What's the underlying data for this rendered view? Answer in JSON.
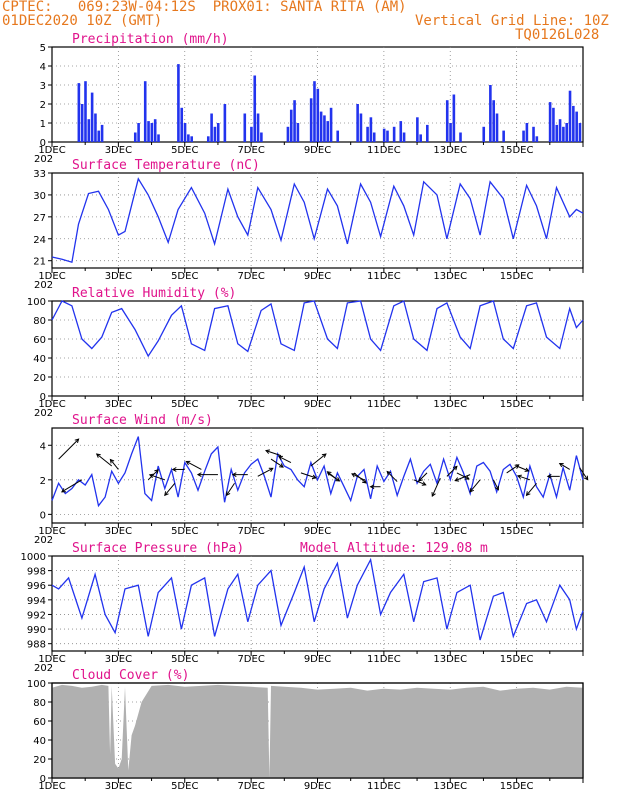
{
  "header": {
    "line1_left": "CPTEC:   069:23W-04:12S  PROX01: SANTA RITA (AM)",
    "line2_left": "01DEC2020 10Z (GMT)",
    "line2_right": "Vertical Grid Line: 10Z",
    "line3_right": "TQ0126L028"
  },
  "colors": {
    "header": "#e6781e",
    "title": "#e0138c",
    "series": "#2233ee",
    "cloud": "#b0b0b0"
  },
  "x_tick_labels": [
    "1DEC",
    "3DEC",
    "5DEC",
    "7DEC",
    "9DEC",
    "11DEC",
    "13DEC",
    "15DEC"
  ],
  "year_fragment": "202",
  "chart_data": [
    {
      "type": "bar",
      "title": "Precipitation (mm/h)",
      "ylim": [
        0,
        5
      ],
      "yticks": [
        0,
        1,
        2,
        3,
        4,
        5
      ],
      "grid": true,
      "x_unit": "days since 01DEC2020 10Z",
      "bars": [
        [
          0.8,
          3.1
        ],
        [
          0.9,
          2.0
        ],
        [
          1.0,
          3.2
        ],
        [
          1.1,
          1.2
        ],
        [
          1.2,
          2.6
        ],
        [
          1.3,
          1.5
        ],
        [
          1.4,
          0.6
        ],
        [
          1.5,
          0.9
        ],
        [
          2.5,
          0.5
        ],
        [
          2.6,
          1.0
        ],
        [
          2.8,
          3.2
        ],
        [
          2.9,
          1.1
        ],
        [
          3.0,
          1.0
        ],
        [
          3.1,
          1.2
        ],
        [
          3.2,
          0.4
        ],
        [
          3.8,
          4.1
        ],
        [
          3.9,
          1.8
        ],
        [
          4.0,
          1.0
        ],
        [
          4.1,
          0.4
        ],
        [
          4.2,
          0.3
        ],
        [
          4.7,
          0.3
        ],
        [
          4.8,
          1.5
        ],
        [
          4.9,
          0.8
        ],
        [
          5.0,
          1.0
        ],
        [
          5.2,
          2.0
        ],
        [
          5.8,
          1.5
        ],
        [
          6.0,
          0.8
        ],
        [
          6.1,
          3.5
        ],
        [
          6.2,
          1.5
        ],
        [
          6.3,
          0.5
        ],
        [
          7.1,
          0.8
        ],
        [
          7.2,
          1.7
        ],
        [
          7.3,
          2.2
        ],
        [
          7.4,
          1.0
        ],
        [
          7.8,
          2.3
        ],
        [
          7.9,
          3.2
        ],
        [
          8.0,
          2.8
        ],
        [
          8.1,
          1.6
        ],
        [
          8.2,
          1.4
        ],
        [
          8.3,
          1.1
        ],
        [
          8.4,
          1.8
        ],
        [
          8.6,
          0.6
        ],
        [
          9.2,
          2.0
        ],
        [
          9.3,
          1.5
        ],
        [
          9.5,
          0.8
        ],
        [
          9.6,
          1.3
        ],
        [
          9.7,
          0.5
        ],
        [
          10.0,
          0.7
        ],
        [
          10.1,
          0.6
        ],
        [
          10.3,
          0.8
        ],
        [
          10.5,
          1.1
        ],
        [
          10.6,
          0.5
        ],
        [
          11.0,
          1.3
        ],
        [
          11.1,
          0.4
        ],
        [
          11.3,
          0.9
        ],
        [
          11.9,
          2.2
        ],
        [
          12.0,
          1.0
        ],
        [
          12.1,
          2.5
        ],
        [
          12.3,
          0.5
        ],
        [
          13.0,
          0.8
        ],
        [
          13.2,
          3.0
        ],
        [
          13.3,
          2.2
        ],
        [
          13.4,
          1.5
        ],
        [
          13.6,
          0.6
        ],
        [
          14.2,
          0.6
        ],
        [
          14.3,
          1.0
        ],
        [
          14.5,
          0.8
        ],
        [
          14.6,
          0.3
        ],
        [
          15.0,
          2.1
        ],
        [
          15.1,
          1.8
        ],
        [
          15.2,
          0.9
        ],
        [
          15.3,
          1.2
        ],
        [
          15.4,
          0.8
        ],
        [
          15.5,
          1.0
        ],
        [
          15.6,
          2.7
        ],
        [
          15.7,
          1.9
        ],
        [
          15.8,
          1.6
        ],
        [
          15.9,
          1.0
        ]
      ]
    },
    {
      "type": "line",
      "title": "Surface Temperature (nC)",
      "ylim": [
        20,
        33
      ],
      "yticks": [
        21,
        24,
        27,
        30,
        33
      ],
      "grid": true,
      "x": [
        0.0,
        0.3,
        0.6,
        0.8,
        1.1,
        1.4,
        1.7,
        2.0,
        2.2,
        2.6,
        2.9,
        3.2,
        3.5,
        3.8,
        4.2,
        4.6,
        4.9,
        5.3,
        5.6,
        5.9,
        6.2,
        6.6,
        6.9,
        7.3,
        7.6,
        7.9,
        8.3,
        8.6,
        8.9,
        9.3,
        9.6,
        9.9,
        10.3,
        10.6,
        10.9,
        11.2,
        11.6,
        11.9,
        12.3,
        12.6,
        12.9,
        13.2,
        13.6,
        13.9,
        14.3,
        14.6,
        14.9,
        15.2,
        15.6,
        15.8,
        16.0
      ],
      "y": [
        21.5,
        21.2,
        20.8,
        26.0,
        30.2,
        30.5,
        28.0,
        24.5,
        25.0,
        32.2,
        30.0,
        27.0,
        23.5,
        28.0,
        31.0,
        27.5,
        23.3,
        30.8,
        27.0,
        24.5,
        31.0,
        28.0,
        23.8,
        31.5,
        29.0,
        24.0,
        30.8,
        28.5,
        23.3,
        31.5,
        29.0,
        24.3,
        31.2,
        28.5,
        24.5,
        31.8,
        30.0,
        24.0,
        31.5,
        29.5,
        24.5,
        31.8,
        29.5,
        24.0,
        31.3,
        28.5,
        24.0,
        31.0,
        27.0,
        28.0,
        27.5
      ]
    },
    {
      "type": "line",
      "title": "Relative Humidity (%)",
      "ylim": [
        0,
        100
      ],
      "yticks": [
        0,
        20,
        40,
        60,
        80,
        100
      ],
      "grid": true,
      "x": [
        0.0,
        0.3,
        0.6,
        0.9,
        1.2,
        1.5,
        1.8,
        2.1,
        2.5,
        2.9,
        3.2,
        3.6,
        3.9,
        4.2,
        4.6,
        4.9,
        5.3,
        5.6,
        5.9,
        6.3,
        6.6,
        6.9,
        7.3,
        7.6,
        7.9,
        8.3,
        8.6,
        8.9,
        9.3,
        9.6,
        9.9,
        10.3,
        10.6,
        10.9,
        11.3,
        11.6,
        11.9,
        12.3,
        12.6,
        12.9,
        13.3,
        13.6,
        13.9,
        14.3,
        14.6,
        14.9,
        15.3,
        15.6,
        15.8,
        16.0
      ],
      "y": [
        80,
        100,
        95,
        60,
        50,
        62,
        88,
        92,
        70,
        42,
        58,
        85,
        95,
        55,
        48,
        92,
        95,
        55,
        47,
        90,
        97,
        55,
        48,
        98,
        100,
        60,
        50,
        98,
        100,
        60,
        48,
        95,
        100,
        60,
        48,
        92,
        98,
        62,
        50,
        95,
        100,
        60,
        50,
        95,
        98,
        62,
        50,
        92,
        72,
        80
      ]
    },
    {
      "type": "line",
      "title": "Surface Wind (m/s)",
      "ylim": [
        -0.5,
        5
      ],
      "yticks": [
        0,
        2,
        4
      ],
      "grid": true,
      "x": [
        0.0,
        0.2,
        0.4,
        0.6,
        0.8,
        1.0,
        1.2,
        1.4,
        1.6,
        1.8,
        2.0,
        2.2,
        2.4,
        2.6,
        2.8,
        3.0,
        3.2,
        3.4,
        3.6,
        3.8,
        4.0,
        4.2,
        4.4,
        4.6,
        4.8,
        5.0,
        5.2,
        5.4,
        5.6,
        5.8,
        6.0,
        6.2,
        6.4,
        6.6,
        6.8,
        7.0,
        7.2,
        7.4,
        7.6,
        7.8,
        8.0,
        8.2,
        8.4,
        8.6,
        8.8,
        9.0,
        9.2,
        9.4,
        9.6,
        9.8,
        10.0,
        10.2,
        10.4,
        10.6,
        10.8,
        11.0,
        11.2,
        11.4,
        11.6,
        11.8,
        12.0,
        12.2,
        12.4,
        12.6,
        12.8,
        13.0,
        13.2,
        13.4,
        13.6,
        13.8,
        14.0,
        14.2,
        14.4,
        14.6,
        14.8,
        15.0,
        15.2,
        15.4,
        15.6,
        15.8,
        16.0
      ],
      "y": [
        0.8,
        1.8,
        1.2,
        1.5,
        2.0,
        1.7,
        2.3,
        0.5,
        1.0,
        2.5,
        1.8,
        2.4,
        3.5,
        4.5,
        1.2,
        0.8,
        2.8,
        1.5,
        2.6,
        1.0,
        3.0,
        2.4,
        1.4,
        2.5,
        3.5,
        3.9,
        0.7,
        2.6,
        1.4,
        2.4,
        2.9,
        3.2,
        2.2,
        1.0,
        3.5,
        2.8,
        2.6,
        2.0,
        1.6,
        3.0,
        2.0,
        2.8,
        1.2,
        2.4,
        1.6,
        0.8,
        2.2,
        2.6,
        0.9,
        2.8,
        1.9,
        2.5,
        1.1,
        2.2,
        3.2,
        1.8,
        2.5,
        2.9,
        1.8,
        3.2,
        2.0,
        3.3,
        2.4,
        1.2,
        2.8,
        3.0,
        2.5,
        1.3,
        2.6,
        2.9,
        2.2,
        1.0,
        2.8,
        1.6,
        1.0,
        2.3,
        1.0,
        2.7,
        1.4,
        3.4,
        2.0
      ],
      "arrows": [
        [
          0.2,
          3.2,
          20,
          -20
        ],
        [
          0.9,
          2.0,
          -20,
          12
        ],
        [
          1.8,
          2.8,
          -15,
          -12
        ],
        [
          2.0,
          2.6,
          -8,
          -10
        ],
        [
          2.9,
          2.0,
          10,
          -10
        ],
        [
          3.4,
          2.0,
          -15,
          -5
        ],
        [
          3.7,
          1.8,
          -10,
          12
        ],
        [
          4.0,
          2.6,
          -12,
          0
        ],
        [
          4.5,
          2.6,
          -15,
          -8
        ],
        [
          5.0,
          2.3,
          -20,
          0
        ],
        [
          5.5,
          1.8,
          -8,
          12
        ],
        [
          5.9,
          2.3,
          -15,
          0
        ],
        [
          6.2,
          2.2,
          15,
          -8
        ],
        [
          6.6,
          3.2,
          12,
          8
        ],
        [
          6.9,
          3.4,
          -15,
          -5
        ],
        [
          7.2,
          3.0,
          -12,
          -6
        ],
        [
          7.5,
          2.4,
          15,
          5
        ],
        [
          7.8,
          2.8,
          15,
          -12
        ],
        [
          8.3,
          2.4,
          12,
          8
        ],
        [
          8.6,
          2.0,
          -10,
          -8
        ],
        [
          9.1,
          2.4,
          12,
          10
        ],
        [
          9.4,
          2.0,
          -12,
          -6
        ],
        [
          9.9,
          1.6,
          -10,
          0
        ],
        [
          10.4,
          1.9,
          -10,
          -10
        ],
        [
          10.9,
          2.0,
          12,
          5
        ],
        [
          11.3,
          2.4,
          -8,
          8
        ],
        [
          11.7,
          2.1,
          -8,
          18
        ],
        [
          11.9,
          2.2,
          10,
          -10
        ],
        [
          12.2,
          2.4,
          12,
          6
        ],
        [
          12.6,
          2.3,
          -15,
          6
        ],
        [
          12.9,
          2.0,
          -10,
          12
        ],
        [
          13.3,
          2.0,
          5,
          10
        ],
        [
          13.7,
          2.4,
          12,
          -8
        ],
        [
          14.0,
          2.8,
          12,
          5
        ],
        [
          14.4,
          2.0,
          -12,
          -4
        ],
        [
          14.6,
          1.8,
          -10,
          12
        ],
        [
          15.3,
          2.2,
          -12,
          0
        ],
        [
          15.6,
          2.6,
          -10,
          -6
        ],
        [
          15.9,
          2.7,
          8,
          12
        ]
      ]
    },
    {
      "type": "line",
      "title": "Surface Pressure (hPa)",
      "subtitle": "Model Altitude: 129.08 m",
      "ylim": [
        987,
        1000
      ],
      "yticks": [
        988,
        990,
        992,
        994,
        996,
        998,
        1000
      ],
      "grid": true,
      "x": [
        0.0,
        0.2,
        0.5,
        0.9,
        1.3,
        1.6,
        1.9,
        2.2,
        2.6,
        2.9,
        3.2,
        3.6,
        3.9,
        4.2,
        4.6,
        4.9,
        5.3,
        5.6,
        5.9,
        6.2,
        6.6,
        6.9,
        7.3,
        7.6,
        7.9,
        8.2,
        8.6,
        8.9,
        9.2,
        9.6,
        9.9,
        10.2,
        10.6,
        10.9,
        11.2,
        11.6,
        11.9,
        12.2,
        12.6,
        12.9,
        13.3,
        13.6,
        13.9,
        14.3,
        14.6,
        14.9,
        15.3,
        15.6,
        15.8,
        16.0
      ],
      "y": [
        996,
        995.5,
        997,
        991.5,
        997.5,
        992,
        989.5,
        995.5,
        996,
        989,
        995,
        997,
        990,
        996,
        997,
        989,
        995.5,
        997.5,
        991,
        996,
        998,
        990.5,
        995,
        998.5,
        991,
        995.5,
        999,
        991.5,
        996,
        999.5,
        992,
        995,
        997.5,
        991,
        996.5,
        997,
        990,
        995,
        996,
        988.5,
        994.5,
        995,
        989,
        993.5,
        994,
        991,
        996,
        994,
        990,
        992.5
      ]
    },
    {
      "type": "area",
      "title": "Cloud Cover (%)",
      "ylim": [
        0,
        100
      ],
      "yticks": [
        0,
        20,
        40,
        60,
        80,
        100
      ],
      "grid": true,
      "x": [
        0.0,
        0.3,
        0.6,
        0.9,
        1.2,
        1.5,
        1.7,
        1.75,
        1.8,
        1.9,
        2.0,
        2.1,
        2.2,
        2.3,
        2.4,
        2.5,
        2.7,
        3.0,
        3.5,
        4.0,
        4.5,
        5.0,
        5.5,
        6.0,
        6.5,
        6.55,
        6.6,
        7.0,
        7.5,
        8.0,
        8.5,
        9.0,
        9.5,
        10.0,
        10.5,
        11.0,
        11.5,
        12.0,
        12.5,
        13.0,
        13.5,
        14.0,
        14.5,
        15.0,
        15.5,
        16.0
      ],
      "y": [
        95,
        98,
        97,
        95,
        96,
        98,
        97,
        25,
        97,
        15,
        10,
        20,
        96,
        8,
        45,
        55,
        80,
        97,
        98,
        96,
        97,
        98,
        97,
        96,
        95,
        0,
        97,
        96,
        95,
        93,
        94,
        95,
        92,
        94,
        93,
        95,
        94,
        93,
        95,
        96,
        92,
        94,
        95,
        93,
        96,
        95
      ]
    }
  ]
}
